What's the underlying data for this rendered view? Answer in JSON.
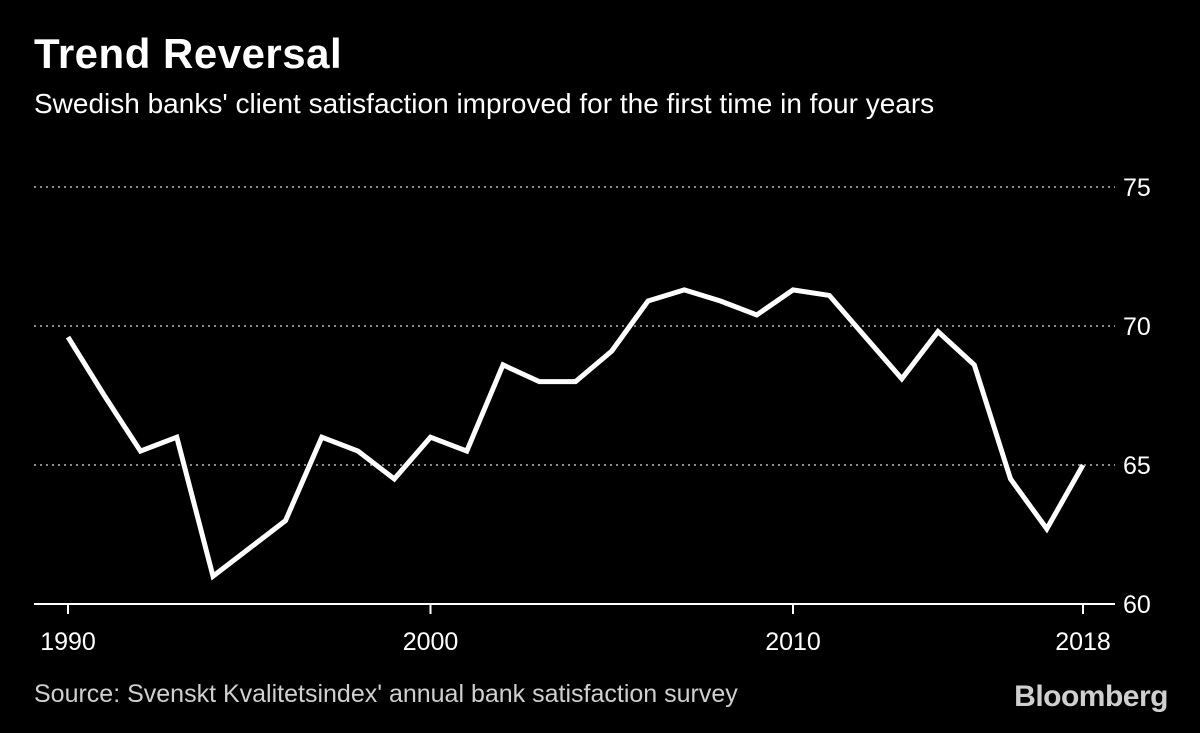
{
  "header": {
    "title": "Trend Reversal",
    "subtitle": "Swedish banks' client satisfaction improved for the first time in four years"
  },
  "footer": {
    "source": "Source: Svenskt Kvalitetsindex' annual bank satisfaction survey",
    "brand": "Bloomberg"
  },
  "colors": {
    "background": "#000000",
    "line": "#ffffff",
    "grid": "#8a8a8a",
    "text": "#ffffff",
    "muted": "#d0d0d0"
  },
  "chart_data": {
    "type": "line",
    "title": "Trend Reversal",
    "subtitle": "Swedish banks' client satisfaction improved for the first time in four years",
    "xlabel": "",
    "ylabel": "",
    "xlim": [
      1990,
      2018
    ],
    "ylim": [
      60,
      75
    ],
    "x_ticks": [
      1990,
      2000,
      2010,
      2018
    ],
    "y_ticks": [
      60,
      65,
      70,
      75
    ],
    "y_axis_side": "right",
    "grid": "horizontal dotted",
    "series": [
      {
        "name": "Client satisfaction",
        "x": [
          1990,
          1991,
          1992,
          1993,
          1994,
          1995,
          1996,
          1997,
          1998,
          1999,
          2000,
          2001,
          2002,
          2003,
          2004,
          2005,
          2006,
          2007,
          2008,
          2009,
          2010,
          2011,
          2012,
          2013,
          2014,
          2015,
          2016,
          2017,
          2018
        ],
        "values": [
          69.6,
          67.5,
          65.5,
          66.0,
          61.0,
          62.0,
          63.0,
          66.0,
          65.5,
          64.5,
          66.0,
          65.5,
          68.6,
          68.0,
          68.0,
          69.1,
          70.9,
          71.3,
          70.9,
          70.4,
          71.3,
          71.1,
          69.6,
          68.1,
          69.8,
          68.6,
          64.5,
          62.7,
          65.0
        ]
      }
    ]
  }
}
